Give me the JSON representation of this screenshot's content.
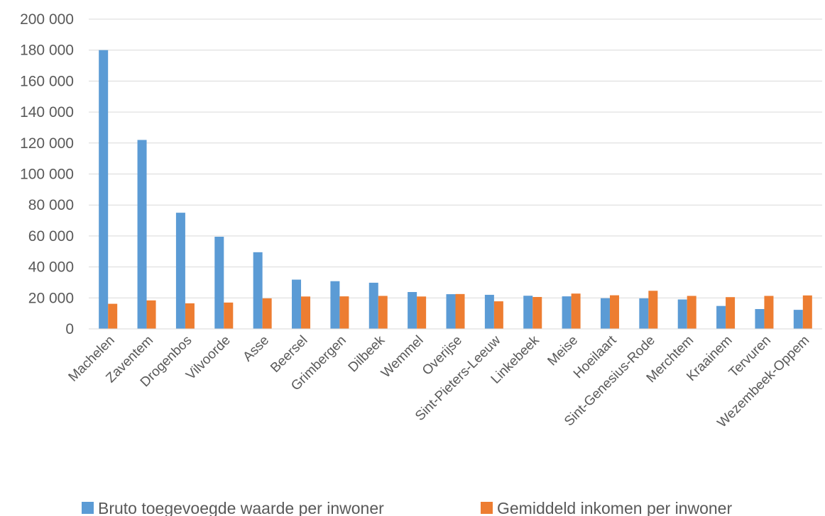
{
  "chart_data": {
    "type": "bar",
    "categories": [
      "Machelen",
      "Zaventem",
      "Drogenbos",
      "Vilvoorde",
      "Asse",
      "Beersel",
      "Grimbergen",
      "Dilbeek",
      "Wemmel",
      "Overijse",
      "Sint-Pieters-Leeuw",
      "Linkebeek",
      "Meise",
      "Hoeilaart",
      "Sint-Genesius-Rode",
      "Merchtem",
      "Kraainem",
      "Tervuren",
      "Wezembeek-Oppem"
    ],
    "series": [
      {
        "name": "Bruto toegevoegde waarde per inwoner",
        "color": "#5B9BD5",
        "values": [
          180000,
          122000,
          75000,
          59500,
          49500,
          31800,
          30800,
          29800,
          23800,
          22400,
          22000,
          21400,
          21000,
          19800,
          19700,
          19000,
          14800,
          12800,
          12300
        ]
      },
      {
        "name": "Gemiddeld inkomen per inwoner",
        "color": "#ED7D31",
        "values": [
          16200,
          18400,
          16500,
          17000,
          19700,
          20900,
          21000,
          21300,
          20900,
          22500,
          17800,
          20600,
          22800,
          21700,
          24600,
          21300,
          20500,
          21300,
          21600
        ]
      }
    ],
    "y_ticks": [
      "0",
      "20 000",
      "40 000",
      "60 000",
      "80 000",
      "100 000",
      "120 000",
      "140 000",
      "160 000",
      "180 000",
      "200 000"
    ],
    "ylim": [
      0,
      200000
    ],
    "grid": true,
    "legend_position": "bottom",
    "title": "",
    "xlabel": "",
    "ylabel": ""
  }
}
